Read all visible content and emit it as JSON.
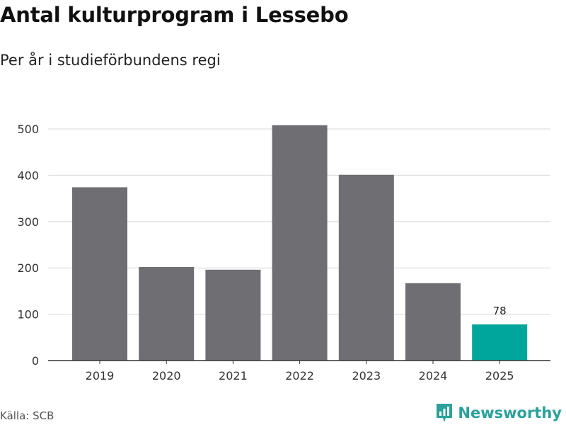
{
  "header": {
    "title": "Antal kulturprogram i Lessebo",
    "subtitle": "Per år i studieförbundens regi"
  },
  "footer": {
    "source": "Källa: SCB",
    "brand": "Newsworthy"
  },
  "colors": {
    "bar": "#6f6e73",
    "highlight": "#00a59b",
    "grid": "#d9d9d9",
    "axis": "#333333",
    "brand": "#2aa19a"
  },
  "chart_data": {
    "type": "bar",
    "title": "Antal kulturprogram i Lessebo",
    "subtitle": "Per år i studieförbundens regi",
    "categories": [
      "2019",
      "2020",
      "2021",
      "2022",
      "2023",
      "2024",
      "2025"
    ],
    "values": [
      374,
      202,
      196,
      508,
      401,
      167,
      78
    ],
    "highlight_index": 6,
    "data_labels": {
      "6": "78"
    },
    "xlabel": "",
    "ylabel": "",
    "ylim": [
      0,
      550
    ],
    "yticks": [
      0,
      100,
      200,
      300,
      400,
      500
    ],
    "grid": true,
    "legend": "none"
  }
}
